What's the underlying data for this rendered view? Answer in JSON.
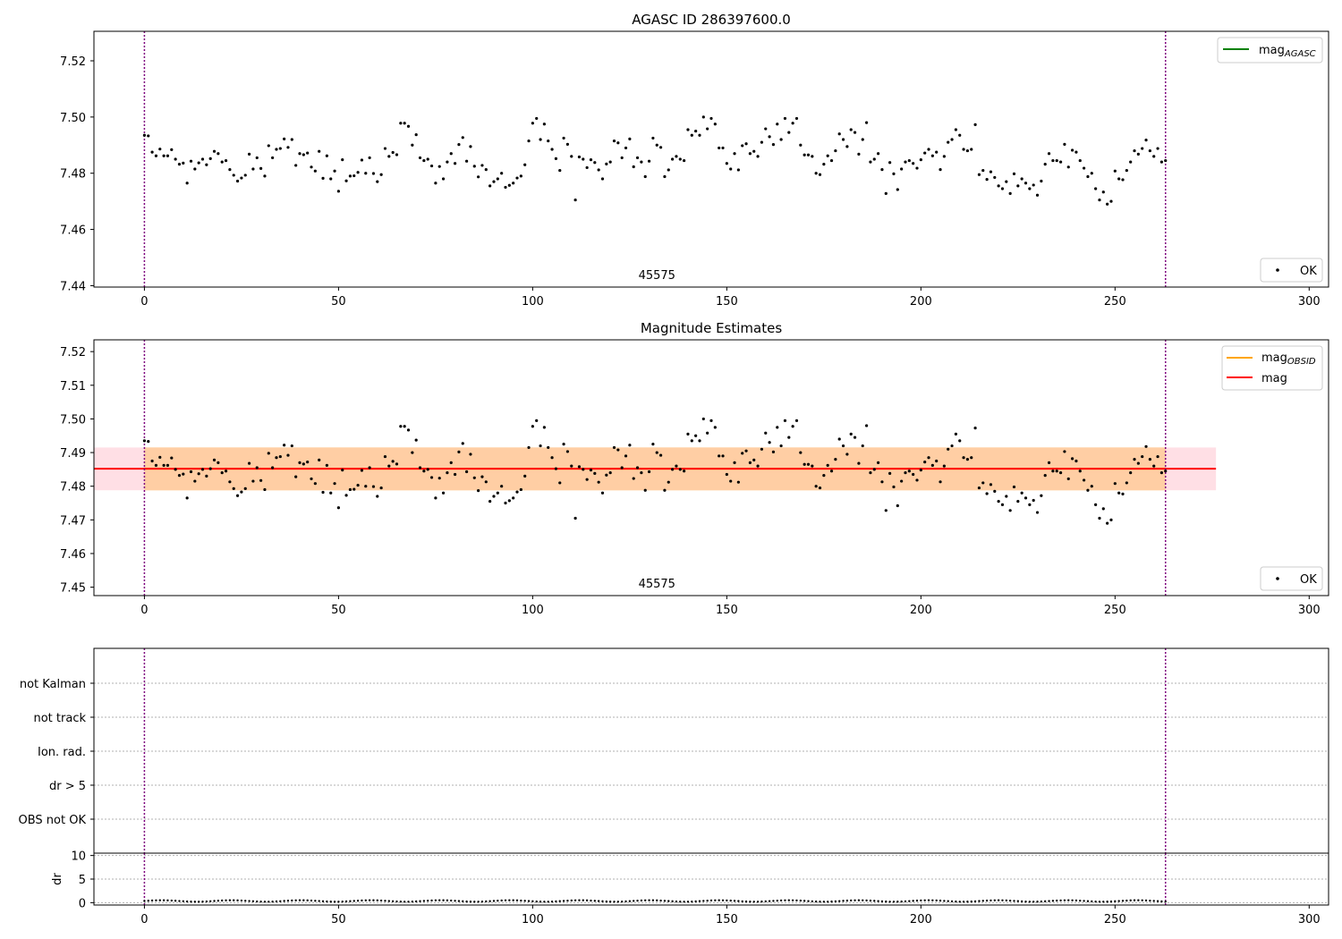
{
  "chart_data": [
    {
      "type": "scatter",
      "title": "AGASC ID 286397600.0",
      "xlim": [
        -13,
        305
      ],
      "ylim": [
        7.4395,
        7.5305
      ],
      "xticks": [
        0,
        50,
        100,
        150,
        200,
        250,
        300
      ],
      "yticks": [
        7.44,
        7.46,
        7.48,
        7.5,
        7.52
      ],
      "vlines": [
        0,
        263
      ],
      "annotation": {
        "text": "45575",
        "x": 132
      },
      "legend_upper": [
        {
          "label": "mag",
          "sub": "AGASC",
          "color": "#008000"
        }
      ],
      "legend_lower": [
        {
          "label": "OK",
          "marker": "dot"
        }
      ],
      "series": [
        {
          "name": "OK",
          "color": "#000000"
        }
      ]
    },
    {
      "type": "scatter",
      "title": "Magnitude Estimates",
      "xlim": [
        -13,
        305
      ],
      "ylim": [
        7.4475,
        7.5235
      ],
      "xticks": [
        0,
        50,
        100,
        150,
        200,
        250,
        300
      ],
      "yticks": [
        7.45,
        7.46,
        7.47,
        7.48,
        7.49,
        7.5,
        7.51,
        7.52
      ],
      "vlines": [
        0,
        263
      ],
      "annotation": {
        "text": "45575",
        "x": 132
      },
      "mag_line": 7.4852,
      "mag_band": [
        7.4788,
        7.4915
      ],
      "band_xrange": [
        -13,
        276
      ],
      "legend_upper": [
        {
          "label": "mag",
          "sub": "OBSID",
          "color": "#FFA500"
        },
        {
          "label": "mag",
          "sub": "",
          "color": "#FF0000"
        }
      ],
      "legend_lower": [
        {
          "label": "OK",
          "marker": "dot"
        }
      ],
      "series": [
        {
          "name": "OK",
          "color": "#000000"
        }
      ]
    },
    {
      "type": "scatter",
      "title": "",
      "xlim": [
        -13,
        305
      ],
      "vlines": [
        0,
        263
      ],
      "categories": [
        "not Kalman",
        "not track",
        "Ion. rad.",
        "dr > 5",
        "OBS not OK"
      ],
      "flags": []
    },
    {
      "type": "scatter",
      "title": "",
      "ylabel": "dr",
      "xlim": [
        -13,
        305
      ],
      "ylim": [
        -0.5,
        10.5
      ],
      "xticks": [
        0,
        50,
        100,
        150,
        200,
        250,
        300
      ],
      "yticks": [
        0,
        5,
        10
      ],
      "vlines": [
        0,
        263
      ],
      "dr_base": 0.35
    }
  ],
  "mag_values": [
    7.4935,
    7.4933,
    7.4875,
    7.4862,
    7.4886,
    7.4862,
    7.4862,
    7.4884,
    7.485,
    7.4832,
    7.4836,
    7.4765,
    7.4843,
    7.4815,
    7.4837,
    7.485,
    7.483,
    7.4852,
    7.4878,
    7.487,
    7.484,
    7.4845,
    7.4813,
    7.4793,
    7.4772,
    7.4783,
    7.4793,
    7.4868,
    7.4815,
    7.4855,
    7.4817,
    7.479,
    7.4898,
    7.4855,
    7.4885,
    7.4888,
    7.4922,
    7.4892,
    7.492,
    7.4828,
    7.487,
    7.4866,
    7.4872,
    7.4822,
    7.4808,
    7.4878,
    7.4782,
    7.4862,
    7.478,
    7.4808,
    7.4736,
    7.4848,
    7.4773,
    7.479,
    7.4791,
    7.4803,
    7.4847,
    7.48,
    7.4855,
    7.4799,
    7.477,
    7.4795,
    7.4888,
    7.486,
    7.4874,
    7.4866,
    7.4978,
    7.4978,
    7.4967,
    7.49,
    7.4937,
    7.4855,
    7.4845,
    7.485,
    7.4826,
    7.4765,
    7.4824,
    7.478,
    7.484,
    7.487,
    7.4835,
    7.4902,
    7.4927,
    7.4843,
    7.4895,
    7.4825,
    7.4787,
    7.4828,
    7.4813,
    7.4755,
    7.477,
    7.478,
    7.48,
    7.475,
    7.4757,
    7.4765,
    7.4783,
    7.479,
    7.483,
    7.4915,
    7.4978,
    7.4995,
    7.492,
    7.4975,
    7.4915,
    7.4885,
    7.4852,
    7.481,
    7.4925,
    7.4903,
    7.486,
    7.4705,
    7.4858,
    7.485,
    7.482,
    7.4848,
    7.4838,
    7.4812,
    7.478,
    7.4833,
    7.484,
    7.4915,
    7.4908,
    7.4855,
    7.489,
    7.4922,
    7.4823,
    7.4855,
    7.484,
    7.4788,
    7.4843,
    7.4925,
    7.49,
    7.4892,
    7.4788,
    7.4812,
    7.485,
    7.486,
    7.485,
    7.4845,
    7.4955,
    7.4935,
    7.495,
    7.4935,
    7.5,
    7.4958,
    7.4995,
    7.4975,
    7.489,
    7.489,
    7.4835,
    7.4815,
    7.487,
    7.4812,
    7.4898,
    7.4905,
    7.487,
    7.4878,
    7.486,
    7.491,
    7.4958,
    7.493,
    7.4902,
    7.4975,
    7.492,
    7.4995,
    7.4945,
    7.4978,
    7.4995,
    7.49,
    7.4865,
    7.4865,
    7.486,
    7.48,
    7.4795,
    7.4832,
    7.4862,
    7.4845,
    7.488,
    7.494,
    7.492,
    7.4895,
    7.4955,
    7.4945,
    7.4868,
    7.492,
    7.498,
    7.484,
    7.485,
    7.487,
    7.4813,
    7.4728,
    7.4838,
    7.4798,
    7.4742,
    7.4815,
    7.484,
    7.4845,
    7.4835,
    7.4818,
    7.4848,
    7.4872,
    7.4885,
    7.4862,
    7.4875,
    7.4813,
    7.486,
    7.491,
    7.492,
    7.4955,
    7.4935,
    7.4885,
    7.488,
    7.4885,
    7.4973,
    7.4795,
    7.481,
    7.4778,
    7.4805,
    7.4785,
    7.4755,
    7.4745,
    7.477,
    7.4728,
    7.4798,
    7.4755,
    7.478,
    7.4765,
    7.4745,
    7.4758,
    7.4722,
    7.4772,
    7.4832,
    7.487,
    7.4845,
    7.4845,
    7.484,
    7.4903,
    7.4822,
    7.4882,
    7.4875,
    7.4845,
    7.4818,
    7.4788,
    7.48,
    7.4745,
    7.4705,
    7.4733,
    7.469,
    7.47,
    7.4808,
    7.478,
    7.4777,
    7.481,
    7.484,
    7.488,
    7.4868,
    7.4888,
    7.4918,
    7.488,
    7.486,
    7.4888,
    7.484,
    7.4845
  ]
}
